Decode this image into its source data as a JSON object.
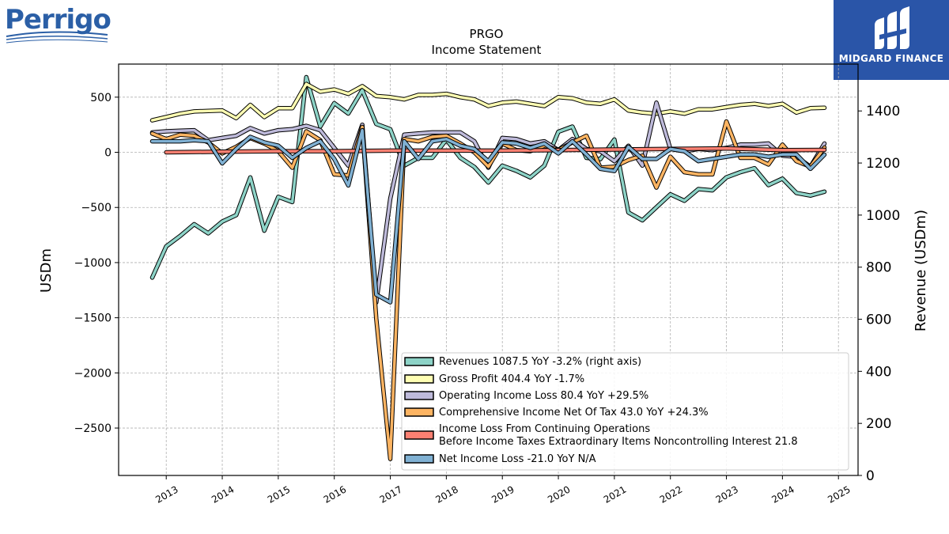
{
  "company_logo": {
    "text": "Perrigo",
    "color": "#2b5fa6"
  },
  "brand": {
    "name": "MIDGARD FINANCE",
    "bg": "#2a55a8"
  },
  "chart_data": {
    "type": "line",
    "title": "PRGO",
    "subtitle": "Income Statement",
    "ylabel": "USDm",
    "y2label": "Revenue (USDm)",
    "ylim": [
      -2930,
      800
    ],
    "y2lim": [
      0,
      1580
    ],
    "yticks": [
      500,
      0,
      -500,
      -1000,
      -1500,
      -2000,
      -2500
    ],
    "yticklabels": [
      "500",
      "0",
      "−500",
      "−1000",
      "−1500",
      "−2000",
      "−2500"
    ],
    "y2ticks": [
      0,
      200,
      400,
      600,
      800,
      1000,
      1200,
      1400
    ],
    "xlim": [
      2012.15,
      2025.35
    ],
    "xticks": [
      2013,
      2014,
      2015,
      2016,
      2017,
      2018,
      2019,
      2020,
      2021,
      2022,
      2023,
      2024,
      2025
    ],
    "grid": true,
    "legend_position": "lower-right",
    "series": [
      {
        "name": "Revenues  1087.5 YoY -3.2% (right axis)",
        "color": "#8dd3c7",
        "axis": "right",
        "x": [
          2012.75,
          2013.0,
          2013.25,
          2013.5,
          2013.75,
          2014.0,
          2014.25,
          2014.5,
          2014.75,
          2015.0,
          2015.25,
          2015.5,
          2015.75,
          2016.0,
          2016.25,
          2016.5,
          2016.75,
          2017.0,
          2017.25,
          2017.5,
          2017.75,
          2018.0,
          2018.25,
          2018.5,
          2018.75,
          2019.0,
          2019.25,
          2019.5,
          2019.75,
          2020.0,
          2020.25,
          2020.5,
          2020.75,
          2021.0,
          2021.25,
          2021.5,
          2021.75,
          2022.0,
          2022.25,
          2022.5,
          2022.75,
          2023.0,
          2023.25,
          2023.5,
          2023.75,
          2024.0,
          2024.25,
          2024.5,
          2024.75
        ],
        "values": [
          760,
          880,
          920,
          965,
          930,
          975,
          1000,
          1145,
          940,
          1070,
          1050,
          1530,
          1340,
          1430,
          1390,
          1480,
          1350,
          1330,
          1190,
          1220,
          1220,
          1290,
          1220,
          1185,
          1125,
          1190,
          1170,
          1145,
          1190,
          1320,
          1340,
          1220,
          1215,
          1290,
          1010,
          980,
          1030,
          1080,
          1055,
          1100,
          1095,
          1145,
          1165,
          1180,
          1115,
          1140,
          1085,
          1075,
          1090
        ]
      },
      {
        "name": "Gross Profit  404.4 YoY -1.7%",
        "color": "#ffffb3",
        "axis": "left",
        "x": [
          2012.75,
          2013.0,
          2013.25,
          2013.5,
          2013.75,
          2014.0,
          2014.25,
          2014.5,
          2014.75,
          2015.0,
          2015.25,
          2015.5,
          2015.75,
          2016.0,
          2016.25,
          2016.5,
          2016.75,
          2017.0,
          2017.25,
          2017.5,
          2017.75,
          2018.0,
          2018.25,
          2018.5,
          2018.75,
          2019.0,
          2019.25,
          2019.5,
          2019.75,
          2020.0,
          2020.25,
          2020.5,
          2020.75,
          2021.0,
          2021.25,
          2021.5,
          2021.75,
          2022.0,
          2022.25,
          2022.5,
          2022.75,
          2023.0,
          2023.25,
          2023.5,
          2023.75,
          2024.0,
          2024.25,
          2024.5,
          2024.75
        ],
        "values": [
          290,
          320,
          350,
          370,
          375,
          380,
          310,
          430,
          320,
          400,
          400,
          620,
          550,
          570,
          530,
          600,
          510,
          500,
          480,
          520,
          520,
          530,
          500,
          480,
          420,
          450,
          460,
          440,
          420,
          500,
          490,
          450,
          440,
          480,
          380,
          360,
          350,
          370,
          350,
          390,
          390,
          410,
          430,
          440,
          420,
          440,
          360,
          400,
          404
        ]
      },
      {
        "name": "Operating Income Loss  80.4 YoY +29.5%",
        "color": "#bebada",
        "axis": "left",
        "x": [
          2012.75,
          2013.0,
          2013.25,
          2013.5,
          2013.75,
          2014.0,
          2014.25,
          2014.5,
          2014.75,
          2015.0,
          2015.25,
          2015.5,
          2015.75,
          2016.0,
          2016.25,
          2016.5,
          2016.75,
          2017.0,
          2017.25,
          2017.5,
          2017.75,
          2018.0,
          2018.25,
          2018.5,
          2018.75,
          2019.0,
          2019.25,
          2019.5,
          2019.75,
          2020.0,
          2020.25,
          2020.5,
          2020.75,
          2021.0,
          2021.25,
          2021.5,
          2021.75,
          2022.0,
          2022.25,
          2022.5,
          2022.75,
          2023.0,
          2023.25,
          2023.5,
          2023.75,
          2024.0,
          2024.25,
          2024.5,
          2024.75
        ],
        "values": [
          180,
          190,
          195,
          200,
          110,
          130,
          150,
          220,
          170,
          200,
          210,
          240,
          200,
          40,
          -120,
          250,
          -1360,
          -420,
          160,
          170,
          180,
          180,
          180,
          100,
          -140,
          130,
          120,
          80,
          100,
          20,
          120,
          30,
          10,
          -80,
          60,
          -120,
          450,
          30,
          10,
          30,
          20,
          40,
          70,
          70,
          80,
          -30,
          -40,
          -130,
          80
        ]
      },
      {
        "name": "Comprehensive Income Net Of Tax  43.0 YoY +24.3%",
        "color": "#fdb462",
        "axis": "left",
        "x": [
          2012.75,
          2013.0,
          2013.25,
          2013.5,
          2013.75,
          2014.0,
          2014.25,
          2014.5,
          2014.75,
          2015.0,
          2015.25,
          2015.5,
          2015.75,
          2016.0,
          2016.25,
          2016.5,
          2016.75,
          2017.0,
          2017.25,
          2017.5,
          2017.75,
          2018.0,
          2018.25,
          2018.5,
          2018.75,
          2019.0,
          2019.25,
          2019.5,
          2019.75,
          2020.0,
          2020.25,
          2020.5,
          2020.75,
          2021.0,
          2021.25,
          2021.5,
          2021.75,
          2022.0,
          2022.25,
          2022.5,
          2022.75,
          2023.0,
          2023.25,
          2023.5,
          2023.75,
          2024.0,
          2024.25,
          2024.5,
          2024.75
        ],
        "values": [
          170,
          120,
          160,
          150,
          90,
          -10,
          50,
          130,
          80,
          10,
          -140,
          190,
          110,
          -200,
          -210,
          230,
          -1510,
          -2780,
          120,
          100,
          140,
          150,
          80,
          0,
          -130,
          80,
          20,
          10,
          60,
          20,
          90,
          150,
          -140,
          -130,
          -70,
          -30,
          -320,
          -40,
          -180,
          -200,
          -200,
          280,
          -50,
          -50,
          -110,
          70,
          -80,
          -130,
          43
        ]
      },
      {
        "name": "Income Loss From Continuing Operations\nBefore Income Taxes Extraordinary Items Noncontrolling Interest  21.8",
        "color": "#fb8072",
        "axis": "left",
        "x": [
          2013.0,
          2014.0,
          2015.0,
          2016.0,
          2017.0,
          2018.0,
          2019.0,
          2020.0,
          2021.0,
          2022.0,
          2023.0,
          2024.0,
          2024.75
        ],
        "values": [
          0,
          5,
          10,
          10,
          15,
          15,
          15,
          20,
          25,
          30,
          35,
          20,
          22
        ]
      },
      {
        "name": "Net Income Loss  -21.0 YoY N/A",
        "color": "#80b1d3",
        "axis": "left",
        "x": [
          2012.75,
          2013.0,
          2013.25,
          2013.5,
          2013.75,
          2014.0,
          2014.25,
          2014.5,
          2014.75,
          2015.0,
          2015.25,
          2015.5,
          2015.75,
          2016.0,
          2016.25,
          2016.5,
          2016.75,
          2017.0,
          2017.25,
          2017.5,
          2017.75,
          2018.0,
          2018.25,
          2018.5,
          2018.75,
          2019.0,
          2019.25,
          2019.5,
          2019.75,
          2020.0,
          2020.25,
          2020.5,
          2020.75,
          2021.0,
          2021.25,
          2021.5,
          2021.75,
          2022.0,
          2022.25,
          2022.5,
          2022.75,
          2023.0,
          2023.25,
          2023.5,
          2023.75,
          2024.0,
          2024.25,
          2024.5,
          2024.75
        ],
        "values": [
          100,
          100,
          100,
          110,
          100,
          -100,
          30,
          140,
          90,
          60,
          -50,
          40,
          100,
          -60,
          -300,
          200,
          -1290,
          -1360,
          100,
          -60,
          100,
          120,
          60,
          30,
          -80,
          90,
          80,
          40,
          80,
          -10,
          100,
          -20,
          -150,
          -170,
          50,
          -60,
          -60,
          30,
          10,
          -80,
          -60,
          -40,
          -20,
          -20,
          -40,
          -20,
          -20,
          -150,
          -21
        ]
      }
    ]
  }
}
